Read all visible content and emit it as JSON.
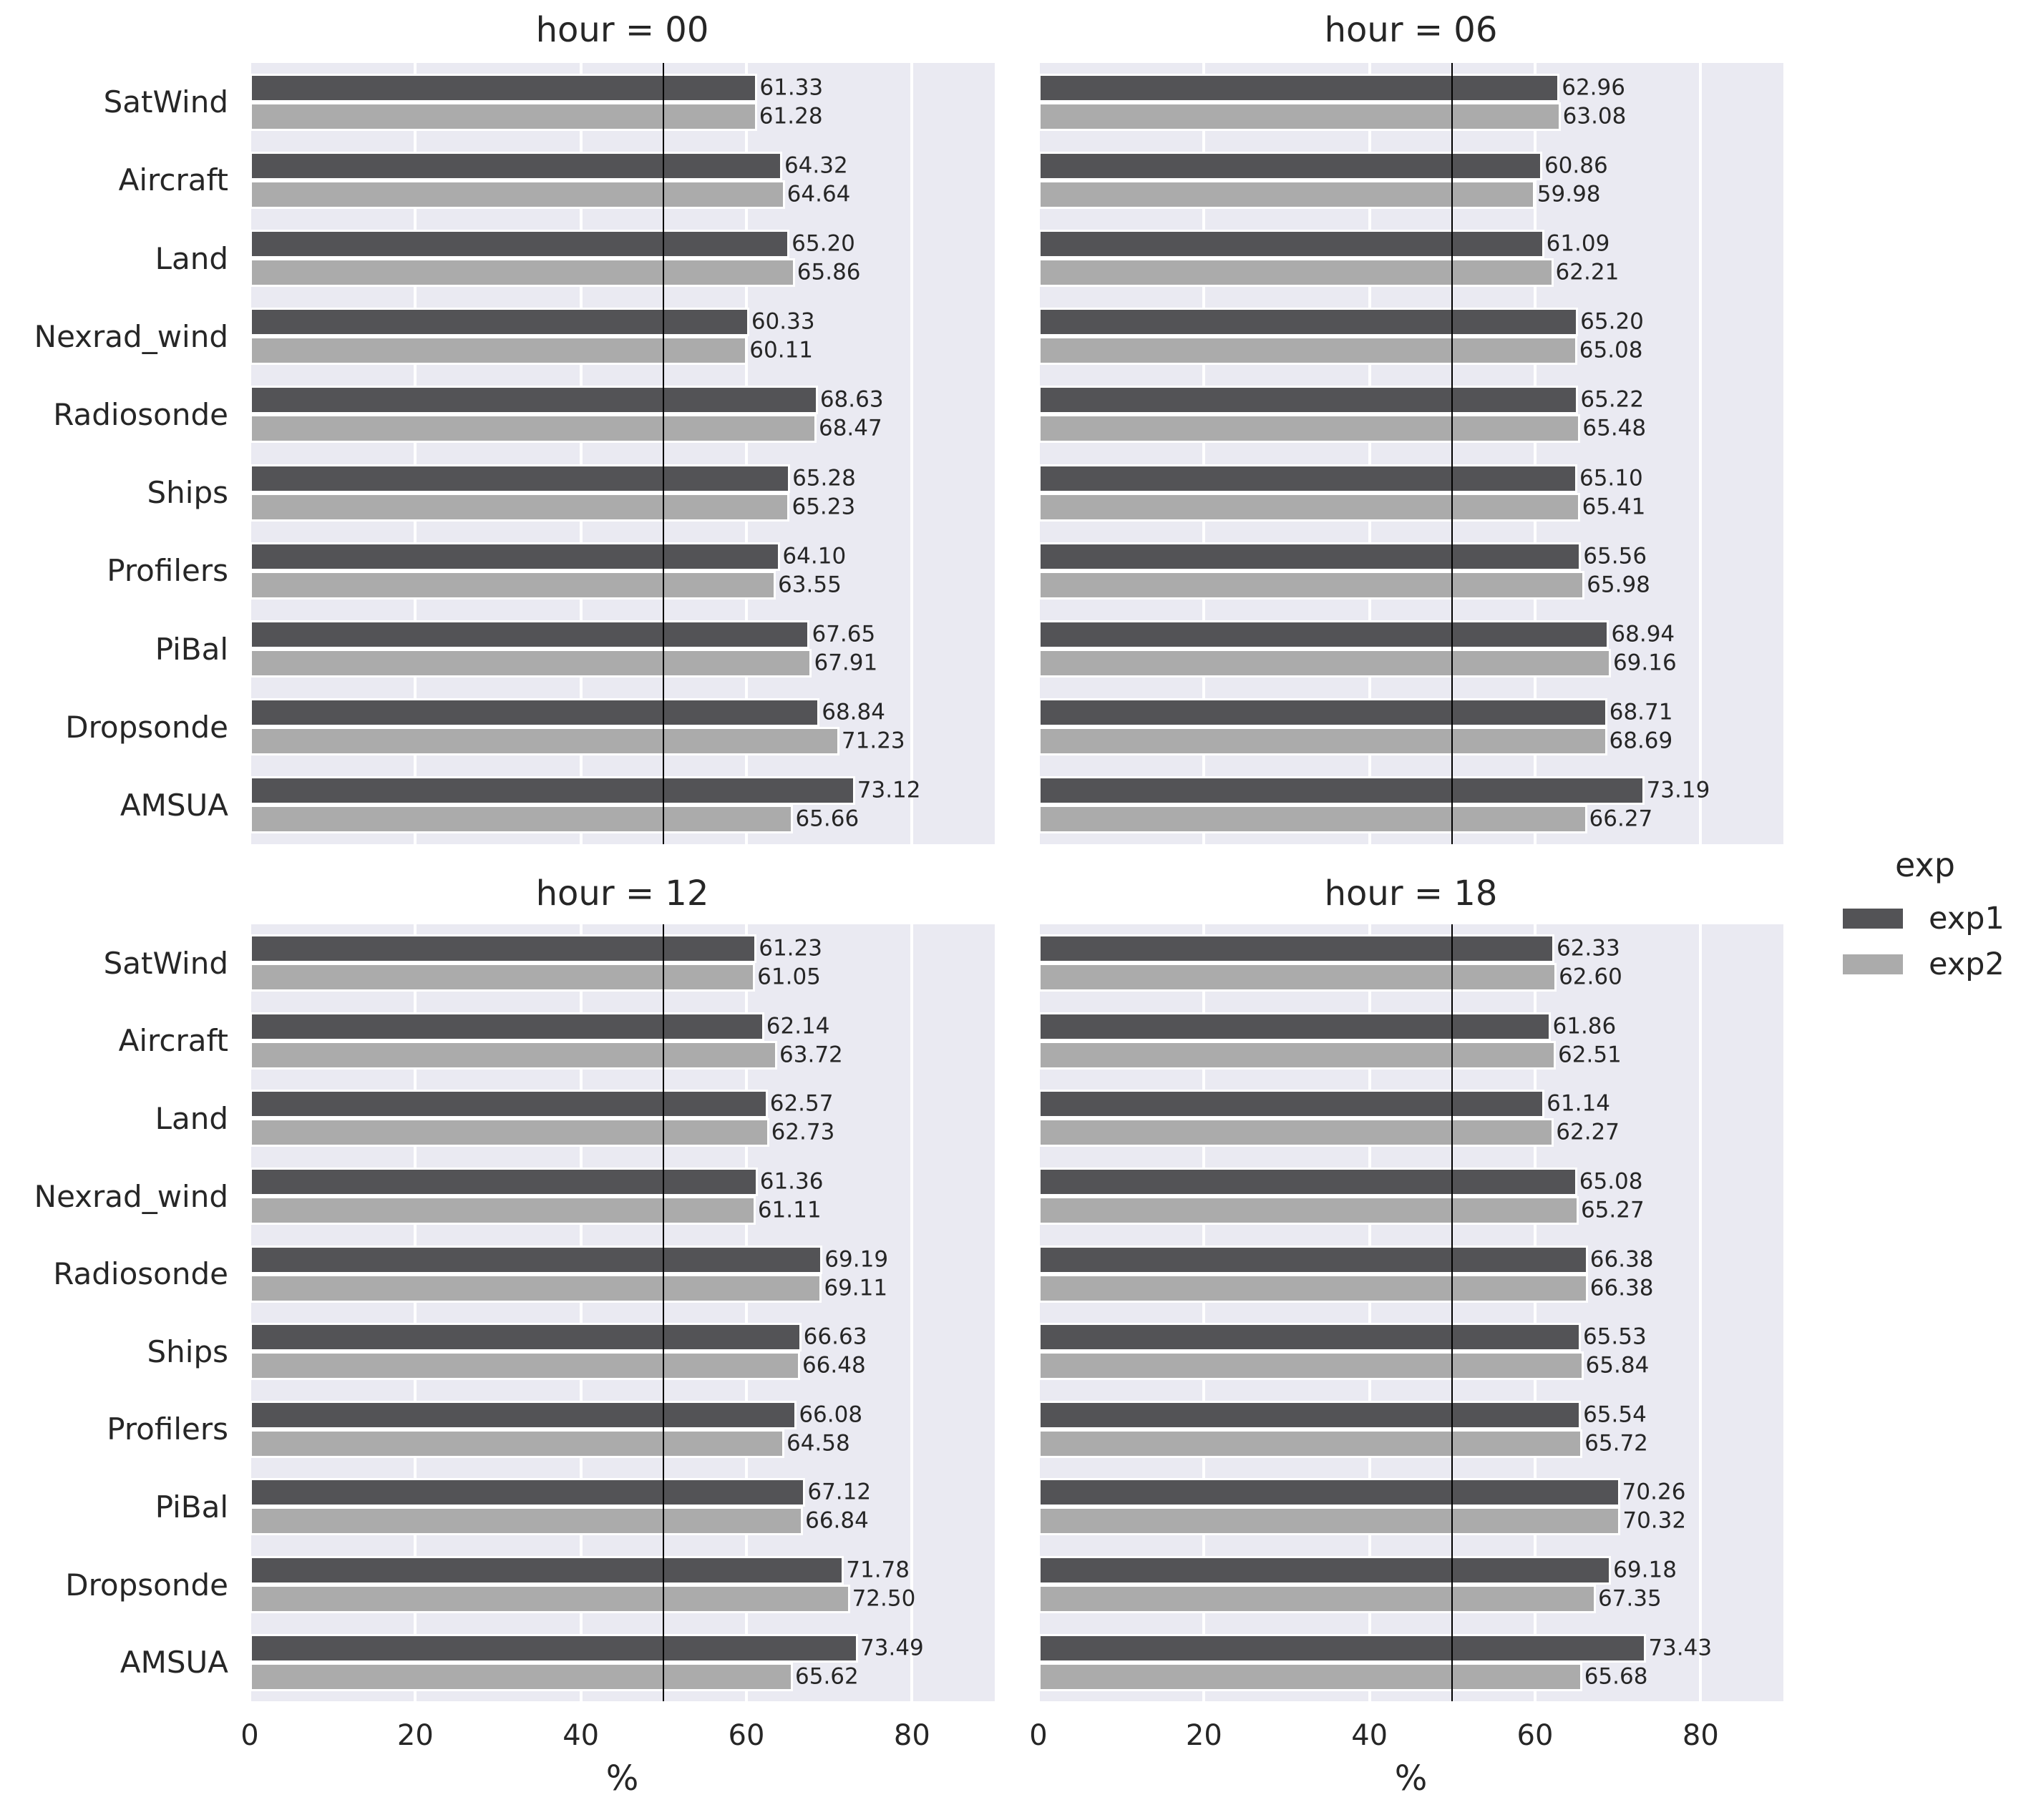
{
  "figure": {
    "background": "#ffffff",
    "plot_background": "#eaeaf2",
    "grid_color": "#ffffff",
    "text_color": "#262626",
    "refline_color": "#000000"
  },
  "chart_data": {
    "type": "bar",
    "orientation": "horizontal",
    "title": "",
    "xlabel": "%",
    "xticks": [
      0,
      20,
      40,
      60,
      80
    ],
    "xlim": [
      0,
      90
    ],
    "reference_line_x": 50,
    "grid": true,
    "categories": [
      "SatWind",
      "Aircraft",
      "Land",
      "Nexrad_wind",
      "Radiosonde",
      "Ships",
      "Profilers",
      "PiBal",
      "Dropsonde",
      "AMSUA"
    ],
    "series_names": [
      "exp1",
      "exp2"
    ],
    "series_colors": {
      "exp1": "#535356",
      "exp2": "#ababab"
    },
    "legend": {
      "title": "exp",
      "position": "right",
      "entries": [
        "exp1",
        "exp2"
      ]
    },
    "facets": [
      {
        "title": "hour = 00",
        "series": [
          {
            "name": "exp1",
            "values": [
              61.33,
              64.32,
              65.2,
              60.33,
              68.63,
              65.28,
              64.1,
              67.65,
              68.84,
              73.12
            ]
          },
          {
            "name": "exp2",
            "values": [
              61.28,
              64.64,
              65.86,
              60.11,
              68.47,
              65.23,
              63.55,
              67.91,
              71.23,
              65.66
            ]
          }
        ]
      },
      {
        "title": "hour = 06",
        "series": [
          {
            "name": "exp1",
            "values": [
              62.96,
              60.86,
              61.09,
              65.2,
              65.22,
              65.1,
              65.56,
              68.94,
              68.71,
              73.19
            ]
          },
          {
            "name": "exp2",
            "values": [
              63.08,
              59.98,
              62.21,
              65.08,
              65.48,
              65.41,
              65.98,
              69.16,
              68.69,
              66.27
            ]
          }
        ]
      },
      {
        "title": "hour = 12",
        "series": [
          {
            "name": "exp1",
            "values": [
              61.23,
              62.14,
              62.57,
              61.36,
              69.19,
              66.63,
              66.08,
              67.12,
              71.78,
              73.49
            ]
          },
          {
            "name": "exp2",
            "values": [
              61.05,
              63.72,
              62.73,
              61.11,
              69.11,
              66.48,
              64.58,
              66.84,
              72.5,
              65.62
            ]
          }
        ]
      },
      {
        "title": "hour = 18",
        "series": [
          {
            "name": "exp1",
            "values": [
              62.33,
              61.86,
              61.14,
              65.08,
              66.38,
              65.53,
              65.54,
              70.26,
              69.18,
              73.43
            ]
          },
          {
            "name": "exp2",
            "values": [
              62.6,
              62.51,
              62.27,
              65.27,
              66.38,
              65.84,
              65.72,
              70.32,
              67.35,
              65.68
            ]
          }
        ]
      }
    ]
  }
}
